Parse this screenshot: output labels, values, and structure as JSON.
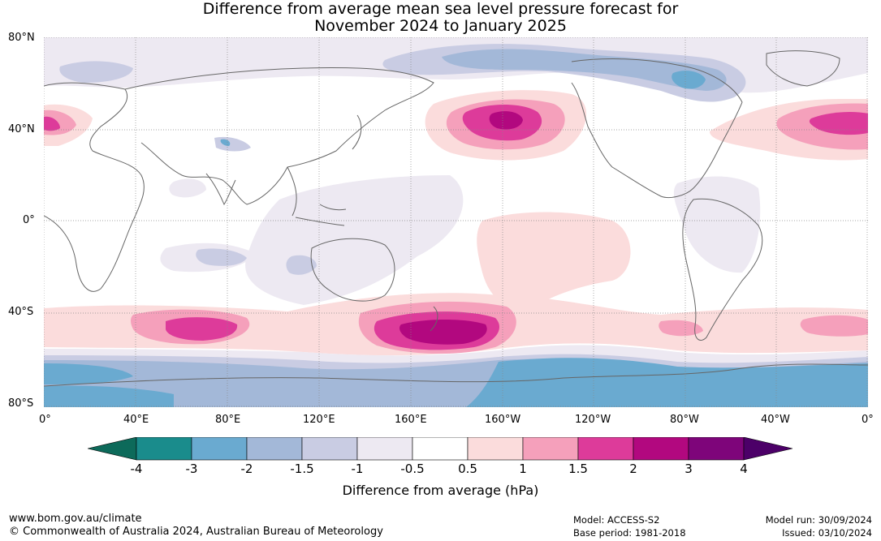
{
  "title": {
    "line1": "Difference from average mean sea level pressure forecast for",
    "line2": "November 2024 to January 2025"
  },
  "axes": {
    "lat_labels": [
      "80°N",
      "40°N",
      "0°",
      "40°S",
      "80°S"
    ],
    "lon_labels": [
      "0°",
      "40°E",
      "80°E",
      "120°E",
      "160°E",
      "160°W",
      "120°W",
      "80°W",
      "40°W",
      "0°"
    ]
  },
  "colorbar": {
    "ticks": [
      "-4",
      "-3",
      "-2",
      "-1.5",
      "-1",
      "-0.5",
      "0.5",
      "1",
      "1.5",
      "2",
      "3",
      "4"
    ],
    "colors": [
      "#1a8c8c",
      "#6aaad0",
      "#a3b8d8",
      "#c9cce3",
      "#ede9f2",
      "#ffffff",
      "#fbdcdc",
      "#f5a0bb",
      "#dd3b9a",
      "#b2087f",
      "#7e057a"
    ],
    "under_color": "#0d6a5a",
    "over_color": "#4c0068",
    "label": "Difference from average (hPa)"
  },
  "footer": {
    "website": "www.bom.gov.au/climate",
    "copyright": "© Commonwealth of Australia 2024, Australian Bureau of Meteorology",
    "model": "Model: ACCESS-S2",
    "base_period": "Base period: 1981-2018",
    "model_run": "Model run: 30/09/2024",
    "issued": "Issued: 03/10/2024"
  }
}
